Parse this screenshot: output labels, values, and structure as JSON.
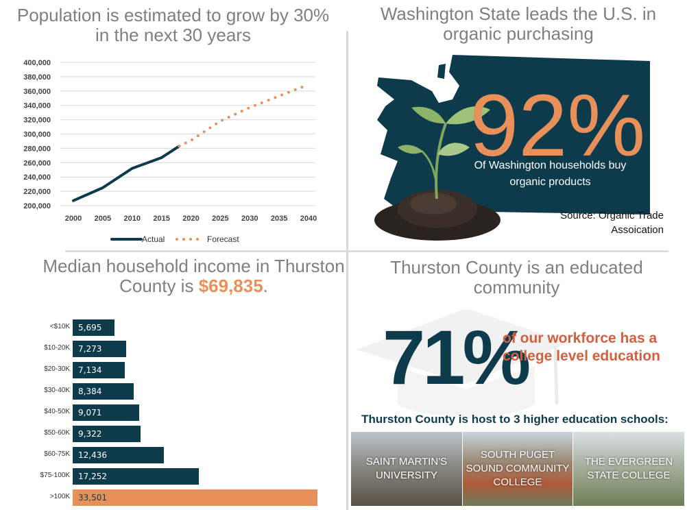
{
  "population": {
    "title_line1": "Population is estimated to grow by 30%",
    "title_line2": "in the next 30 years",
    "legend_actual": "Actual",
    "legend_forecast": "Forecast"
  },
  "organic": {
    "title_line1": "Washington State leads the U.S. in",
    "title_line2": "organic purchasing",
    "percent": "92%",
    "text_line1": "Of Washington households buy",
    "text_line2": "organic products",
    "source_line1": "Source: Organic Trade",
    "source_line2": "Assoication"
  },
  "income": {
    "title_line1": "Median household income in Thurston",
    "title_prefix": "County is ",
    "title_value": "$69,835",
    "title_suffix": "."
  },
  "education": {
    "title_line1": "Thurston County is an educated",
    "title_line2": "community",
    "percent": "71%",
    "text_line1": "of our workforce has a",
    "text_line2": "college level education",
    "schools_heading": "Thurston County is host to 3 higher education schools:",
    "schools": [
      {
        "name_line1": "SAINT MARTIN'S",
        "name_line2": "UNIVERSITY",
        "name_line3": ""
      },
      {
        "name_line1": "SOUTH PUGET",
        "name_line2": "SOUND COMMUNITY",
        "name_line3": "COLLEGE"
      },
      {
        "name_line1": "THE EVERGREEN",
        "name_line2": "STATE COLLEGE",
        "name_line3": ""
      }
    ]
  },
  "colors": {
    "navy": "#0d3b4c",
    "orange": "#e8905a",
    "gray_title": "#7f7f7f",
    "red_text": "#d2603e"
  },
  "chart_data": [
    {
      "type": "line",
      "x": [
        2000,
        2005,
        2010,
        2015,
        2020,
        2025,
        2030,
        2035,
        2040
      ],
      "xticks": [
        "2000",
        "2005",
        "2010",
        "2015",
        "2020",
        "2025",
        "2030",
        "2035",
        "2040"
      ],
      "yticks": [
        "200,000",
        "220,000",
        "240,000",
        "260,000",
        "280,000",
        "300,000",
        "320,000",
        "340,000",
        "360,000",
        "380,000",
        "400,000"
      ],
      "ylim": [
        200000,
        400000
      ],
      "xlim": [
        2000,
        2040
      ],
      "grid": true,
      "legend": "bottom",
      "series": [
        {
          "name": "Actual",
          "style": "solid",
          "color": "#0d3b4c",
          "x": [
            2000,
            2005,
            2010,
            2015,
            2018
          ],
          "y": [
            207000,
            225000,
            252000,
            267000,
            283000
          ]
        },
        {
          "name": "Forecast",
          "style": "dotted",
          "color": "#e8905a",
          "x": [
            2018,
            2020,
            2025,
            2030,
            2035,
            2040
          ],
          "y": [
            283000,
            291000,
            318000,
            337000,
            353000,
            369000
          ]
        }
      ]
    },
    {
      "type": "bar",
      "orientation": "horizontal",
      "categories": [
        "<$10K",
        "$10-20K",
        "$20-30K",
        "$30-40K",
        "$40-50K",
        "$50-60K",
        "$60-75K",
        "$75-100K",
        ">100K"
      ],
      "values": [
        5695,
        7273,
        7134,
        8384,
        9071,
        9322,
        12436,
        17252,
        33501
      ],
      "value_labels": [
        "5,695",
        "7,273",
        "7,134",
        "8,384",
        "9,071",
        "9,322",
        "12,436",
        "17,252",
        "33,501"
      ],
      "highlight_index": 8
    }
  ]
}
